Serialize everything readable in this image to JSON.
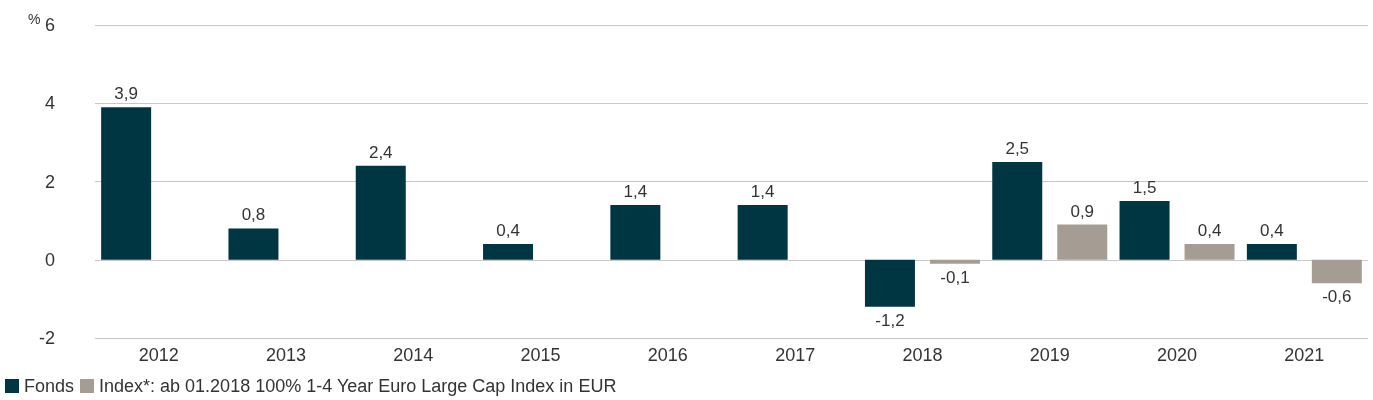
{
  "chart_data": {
    "type": "bar",
    "ylabel": "%",
    "categories": [
      "2012",
      "2013",
      "2014",
      "2015",
      "2016",
      "2017",
      "2018",
      "2019",
      "2020",
      "2021"
    ],
    "series": [
      {
        "name": "Fonds",
        "color": "#003641",
        "values": [
          3.9,
          0.8,
          2.4,
          0.4,
          1.4,
          1.4,
          -1.2,
          2.5,
          1.5,
          0.4
        ],
        "value_labels": [
          "3,9",
          "0,8",
          "2,4",
          "0,4",
          "1,4",
          "1,4",
          "-1,2",
          "2,5",
          "1,5",
          "0,4"
        ]
      },
      {
        "name": "Index*: ab 01.2018 100% 1-4 Year Euro Large Cap Index in EUR",
        "color": "#a59d94",
        "values": [
          null,
          null,
          null,
          null,
          null,
          null,
          -0.1,
          0.9,
          0.4,
          -0.6
        ],
        "value_labels": [
          null,
          null,
          null,
          null,
          null,
          null,
          "-0,1",
          "0,9",
          "0,4",
          "-0,6"
        ]
      }
    ],
    "ylim": [
      -2,
      6
    ],
    "yticks": [
      -2,
      0,
      2,
      4,
      6
    ],
    "grid": "y",
    "legend": "bottom left"
  }
}
